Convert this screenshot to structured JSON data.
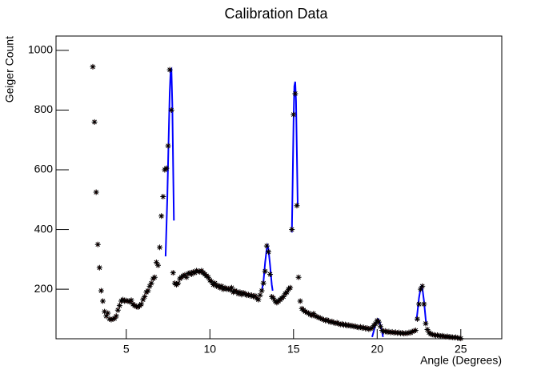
{
  "chart_data": {
    "type": "scatter",
    "title": "Calibration Data",
    "x_label": "Angle (Degrees)",
    "y_label": "Geiger Count",
    "xlim": [
      0.8,
      27.45
    ],
    "ylim": [
      34,
      1048
    ],
    "xticks": [
      5,
      10,
      15,
      20,
      25
    ],
    "yticks": [
      200,
      400,
      600,
      800,
      1000
    ],
    "marker_color": "#000000",
    "error_color": "#ff0000",
    "fit_color": "#0000ff",
    "x": [
      3.0,
      3.1,
      3.2,
      3.3,
      3.4,
      3.5,
      3.6,
      3.7,
      3.8,
      3.9,
      4.0,
      4.1,
      4.2,
      4.3,
      4.4,
      4.5,
      4.6,
      4.7,
      4.8,
      4.9,
      5.0,
      5.1,
      5.2,
      5.3,
      5.4,
      5.5,
      5.6,
      5.7,
      5.8,
      5.9,
      6.0,
      6.1,
      6.2,
      6.3,
      6.4,
      6.5,
      6.6,
      6.7,
      6.8,
      6.9,
      7.0,
      7.1,
      7.2,
      7.3,
      7.4,
      7.5,
      7.6,
      7.7,
      7.8,
      7.9,
      8.0,
      8.1,
      8.2,
      8.3,
      8.4,
      8.5,
      8.6,
      8.7,
      8.8,
      8.9,
      9.0,
      9.1,
      9.2,
      9.3,
      9.4,
      9.5,
      9.6,
      9.7,
      9.8,
      9.9,
      10.0,
      10.1,
      10.2,
      10.3,
      10.4,
      10.5,
      10.6,
      10.7,
      10.8,
      10.9,
      11.0,
      11.1,
      11.2,
      11.3,
      11.4,
      11.5,
      11.6,
      11.7,
      11.8,
      11.9,
      12.0,
      12.1,
      12.2,
      12.3,
      12.4,
      12.5,
      12.6,
      12.7,
      12.8,
      12.9,
      13.0,
      13.1,
      13.2,
      13.3,
      13.4,
      13.5,
      13.6,
      13.7,
      13.8,
      13.9,
      14.0,
      14.1,
      14.2,
      14.3,
      14.4,
      14.5,
      14.6,
      14.7,
      14.8,
      14.9,
      15.0,
      15.1,
      15.2,
      15.3,
      15.4,
      15.5,
      15.6,
      15.7,
      15.8,
      15.9,
      16.0,
      16.1,
      16.2,
      16.3,
      16.4,
      16.5,
      16.6,
      16.7,
      16.8,
      16.9,
      17.0,
      17.1,
      17.2,
      17.3,
      17.4,
      17.5,
      17.6,
      17.7,
      17.8,
      17.9,
      18.0,
      18.1,
      18.2,
      18.3,
      18.4,
      18.5,
      18.6,
      18.7,
      18.8,
      18.9,
      19.0,
      19.1,
      19.2,
      19.3,
      19.4,
      19.5,
      19.6,
      19.7,
      19.8,
      19.9,
      20.0,
      20.1,
      20.2,
      20.3,
      20.4,
      20.5,
      20.6,
      20.7,
      20.8,
      20.9,
      21.0,
      21.1,
      21.2,
      21.3,
      21.4,
      21.5,
      21.6,
      21.7,
      21.8,
      21.9,
      22.0,
      22.1,
      22.2,
      22.3,
      22.4,
      22.5,
      22.6,
      22.7,
      22.8,
      22.9,
      23.0,
      23.1,
      23.2,
      23.3,
      23.4,
      23.5,
      23.6,
      23.7,
      23.8,
      23.9,
      24.0,
      24.1,
      24.2,
      24.3,
      24.4,
      24.5,
      24.6,
      24.7,
      24.8,
      24.9,
      25.0
    ],
    "values": [
      945,
      760,
      525,
      350,
      272,
      195,
      160,
      125,
      110,
      120,
      100,
      98,
      100,
      102,
      110,
      130,
      145,
      160,
      165,
      160,
      162,
      160,
      158,
      163,
      150,
      145,
      142,
      140,
      145,
      150,
      165,
      175,
      190,
      195,
      210,
      220,
      235,
      240,
      290,
      280,
      340,
      445,
      510,
      600,
      605,
      680,
      935,
      800,
      255,
      220,
      215,
      220,
      235,
      240,
      245,
      248,
      240,
      252,
      255,
      250,
      258,
      255,
      262,
      260,
      258,
      262,
      255,
      250,
      245,
      240,
      230,
      225,
      215,
      220,
      210,
      212,
      205,
      210,
      200,
      205,
      200,
      202,
      198,
      205,
      190,
      195,
      192,
      185,
      190,
      182,
      188,
      185,
      180,
      182,
      178,
      180,
      175,
      178,
      170,
      165,
      180,
      195,
      220,
      260,
      345,
      325,
      250,
      175,
      170,
      160,
      155,
      160,
      165,
      170,
      175,
      185,
      190,
      200,
      205,
      400,
      785,
      855,
      480,
      240,
      160,
      135,
      130,
      125,
      122,
      120,
      115,
      112,
      118,
      110,
      108,
      105,
      103,
      100,
      98,
      95,
      97,
      93,
      90,
      92,
      88,
      86,
      88,
      84,
      82,
      84,
      80,
      82,
      78,
      80,
      77,
      78,
      75,
      76,
      73,
      72,
      74,
      70,
      72,
      68,
      70,
      66,
      68,
      70,
      78,
      85,
      95,
      90,
      75,
      62,
      58,
      60,
      56,
      58,
      55,
      57,
      54,
      56,
      53,
      55,
      52,
      54,
      51,
      53,
      52,
      55,
      54,
      58,
      60,
      62,
      100,
      150,
      200,
      210,
      150,
      85,
      65,
      55,
      50,
      48,
      47,
      45,
      46,
      44,
      43,
      44,
      42,
      41,
      42,
      40,
      40,
      39,
      38,
      39,
      37,
      36,
      35
    ],
    "fits": [
      {
        "x": [
          7.35,
          7.4,
          7.45,
          7.5,
          7.55,
          7.6,
          7.65,
          7.7,
          7.75,
          7.8,
          7.85
        ],
        "values": [
          310,
          400,
          500,
          620,
          750,
          860,
          930,
          935,
          820,
          620,
          430
        ]
      },
      {
        "x": [
          13.1,
          13.2,
          13.3,
          13.4,
          13.45,
          13.5,
          13.6,
          13.7,
          13.75
        ],
        "values": [
          195,
          225,
          290,
          335,
          345,
          335,
          280,
          215,
          195
        ]
      },
      {
        "x": [
          14.9,
          14.95,
          15.0,
          15.05,
          15.1,
          15.15,
          15.2,
          15.25
        ],
        "values": [
          390,
          560,
          760,
          880,
          895,
          830,
          650,
          480
        ]
      },
      {
        "x": [
          19.7,
          19.8,
          19.9,
          20.0,
          20.05,
          20.1,
          20.2,
          20.3,
          20.35
        ],
        "values": [
          40,
          60,
          82,
          97,
          100,
          97,
          80,
          55,
          40
        ]
      },
      {
        "x": [
          22.35,
          22.4,
          22.5,
          22.6,
          22.65,
          22.7,
          22.8,
          22.9,
          22.95
        ],
        "values": [
          95,
          120,
          170,
          205,
          210,
          205,
          160,
          100,
          80
        ]
      }
    ]
  }
}
